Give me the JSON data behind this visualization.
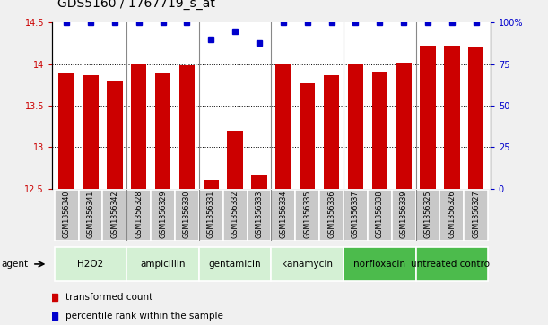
{
  "title": "GDS5160 / 1767719_s_at",
  "samples": [
    "GSM1356340",
    "GSM1356341",
    "GSM1356342",
    "GSM1356328",
    "GSM1356329",
    "GSM1356330",
    "GSM1356331",
    "GSM1356332",
    "GSM1356333",
    "GSM1356334",
    "GSM1356335",
    "GSM1356336",
    "GSM1356337",
    "GSM1356338",
    "GSM1356339",
    "GSM1356325",
    "GSM1356326",
    "GSM1356327"
  ],
  "bar_values": [
    13.9,
    13.87,
    13.79,
    14.0,
    13.9,
    13.99,
    12.6,
    13.2,
    12.67,
    14.0,
    13.77,
    13.87,
    14.0,
    13.91,
    14.02,
    14.22,
    14.22,
    14.2
  ],
  "percentile_values": [
    100,
    100,
    100,
    100,
    100,
    100,
    90,
    95,
    88,
    100,
    100,
    100,
    100,
    100,
    100,
    100,
    100,
    100
  ],
  "groups": [
    {
      "label": "H2O2",
      "start": 0,
      "end": 3,
      "color": "#d4f0d4"
    },
    {
      "label": "ampicillin",
      "start": 3,
      "end": 6,
      "color": "#d4f0d4"
    },
    {
      "label": "gentamicin",
      "start": 6,
      "end": 9,
      "color": "#d4f0d4"
    },
    {
      "label": "kanamycin",
      "start": 9,
      "end": 12,
      "color": "#d4f0d4"
    },
    {
      "label": "norfloxacin",
      "start": 12,
      "end": 15,
      "color": "#4cbb4c"
    },
    {
      "label": "untreated control",
      "start": 15,
      "end": 18,
      "color": "#4cbb4c"
    }
  ],
  "bar_color": "#cc0000",
  "dot_color": "#0000cc",
  "ylim_left": [
    12.5,
    14.5
  ],
  "ylim_right": [
    0,
    100
  ],
  "yticks_left": [
    12.5,
    13.0,
    13.5,
    14.0,
    14.5
  ],
  "yticks_right": [
    0,
    25,
    50,
    75,
    100
  ],
  "ytick_labels_right": [
    "0",
    "25",
    "50",
    "75",
    "100%"
  ],
  "grid_values": [
    13.0,
    13.5,
    14.0
  ],
  "agent_label": "agent",
  "legend_bar_label": "transformed count",
  "legend_dot_label": "percentile rank within the sample",
  "bg_color": "#f0f0f0",
  "plot_bg_color": "#ffffff",
  "title_fontsize": 10,
  "tick_fontsize": 7,
  "bar_width": 0.65,
  "group_boundaries": [
    3,
    6,
    9,
    12,
    15
  ]
}
